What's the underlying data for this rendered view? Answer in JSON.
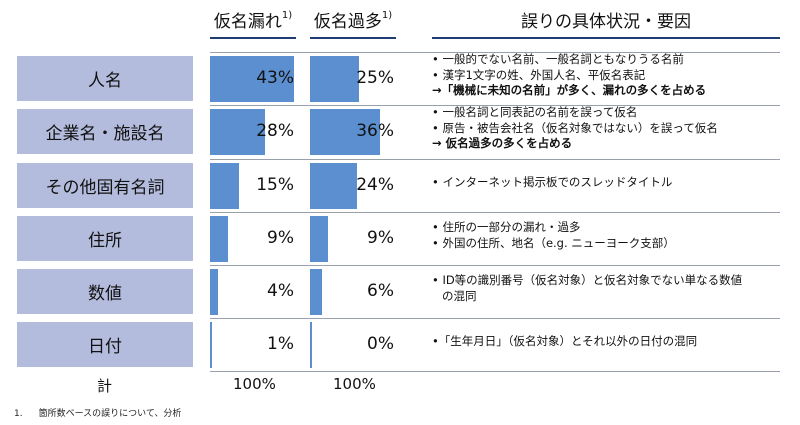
{
  "headers": {
    "omission": "仮名漏れ",
    "omission_sup": "1)",
    "excess": "仮名過多",
    "excess_sup": "1)",
    "causes": "誤りの具体状況・要因"
  },
  "chart_data": {
    "type": "bar",
    "categories": [
      "人名",
      "企業名・施設名",
      "その他固有名詞",
      "住所",
      "数値",
      "日付"
    ],
    "series": [
      {
        "name": "仮名漏れ",
        "values": [
          43,
          28,
          15,
          9,
          4,
          1
        ],
        "labels": [
          "43%",
          "28%",
          "15%",
          "9%",
          "4%",
          "1%"
        ]
      },
      {
        "name": "仮名過多",
        "values": [
          25,
          36,
          24,
          9,
          6,
          0
        ],
        "labels": [
          "25%",
          "36%",
          "24%",
          "9%",
          "6%",
          "0%"
        ]
      }
    ],
    "ylim": [
      0,
      43
    ],
    "total_label": "計",
    "totals": [
      "100%",
      "100%"
    ]
  },
  "descriptions": [
    [
      {
        "text": "• 一般的でない名前、一般名詞ともなりうる名前",
        "style": ""
      },
      {
        "text": "• 漢字1文字の姓、外国人名、平仮名表記",
        "style": ""
      },
      {
        "text": "→「機械に未知の名前」が多く、漏れの多くを占める",
        "style": "bold"
      }
    ],
    [
      {
        "text": "• 一般名詞と同表記の名前を誤って仮名",
        "style": ""
      },
      {
        "text": "• 原告・被告会社名（仮名対象ではない）を誤って仮名",
        "style": ""
      },
      {
        "text": "→ 仮名過多の多くを占める",
        "style": "bold"
      }
    ],
    [
      {
        "text": "• インターネット掲示板でのスレッドタイトル",
        "style": ""
      }
    ],
    [
      {
        "text": "• 住所の一部分の漏れ・過多",
        "style": ""
      },
      {
        "text": "• 外国の住所、地名（e.g. ニューヨーク支部）",
        "style": ""
      }
    ],
    [
      {
        "text": "• ID等の識別番号（仮名対象）と仮名対象でない単なる数値",
        "style": ""
      },
      {
        "text": "の混同",
        "style": "indent"
      }
    ],
    [
      {
        "text": "•「生年月日」（仮名対象）とそれ以外の日付の混同",
        "style": ""
      }
    ]
  ],
  "footnote": {
    "number": "1.",
    "text": "箇所数ベースの誤りについて、分析"
  },
  "colors": {
    "category_box": "#b3bcdc",
    "bar": "#5b8fd0",
    "header_line": "#1f3d73"
  }
}
